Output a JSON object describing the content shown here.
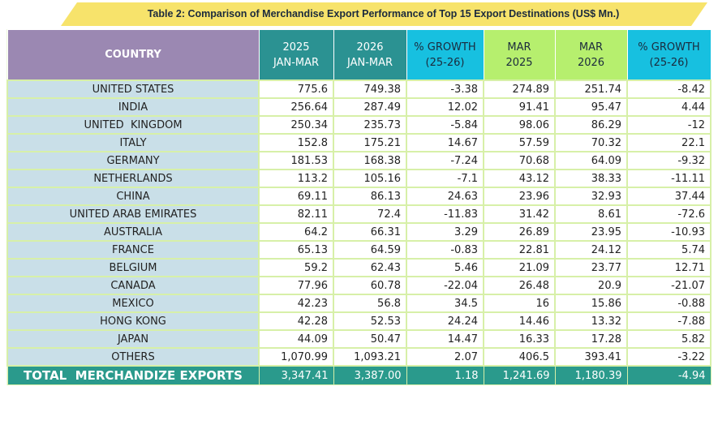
{
  "title": "Table 2: Comparison of Merchandise Export Performance of Top 15 Export Destinations (US$ Mn.)",
  "table": {
    "headers": [
      [
        "COUNTRY"
      ],
      [
        "2025",
        "JAN-MAR"
      ],
      [
        "2026",
        "JAN-MAR"
      ],
      [
        "% GROWTH",
        "(25-26)"
      ],
      [
        "MAR",
        "2025"
      ],
      [
        "MAR",
        "2026"
      ],
      [
        "% GROWTH",
        "(25-26)"
      ]
    ],
    "rows": [
      [
        "UNITED STATES",
        "775.6",
        "749.38",
        "-3.38",
        "274.89",
        "251.74",
        "-8.42"
      ],
      [
        "INDIA",
        "256.64",
        "287.49",
        "12.02",
        "91.41",
        "95.47",
        "4.44"
      ],
      [
        "UNITED  KINGDOM",
        "250.34",
        "235.73",
        "-5.84",
        "98.06",
        "86.29",
        "-12"
      ],
      [
        "ITALY",
        "152.8",
        "175.21",
        "14.67",
        "57.59",
        "70.32",
        "22.1"
      ],
      [
        "GERMANY",
        "181.53",
        "168.38",
        "-7.24",
        "70.68",
        "64.09",
        "-9.32"
      ],
      [
        "NETHERLANDS",
        "113.2",
        "105.16",
        "-7.1",
        "43.12",
        "38.33",
        "-11.11"
      ],
      [
        "CHINA",
        "69.11",
        "86.13",
        "24.63",
        "23.96",
        "32.93",
        "37.44"
      ],
      [
        "UNITED ARAB EMIRATES",
        "82.11",
        "72.4",
        "-11.83",
        "31.42",
        "8.61",
        "-72.6"
      ],
      [
        "AUSTRALIA",
        "64.2",
        "66.31",
        "3.29",
        "26.89",
        "23.95",
        "-10.93"
      ],
      [
        "FRANCE",
        "65.13",
        "64.59",
        "-0.83",
        "22.81",
        "24.12",
        "5.74"
      ],
      [
        "BELGIUM",
        "59.2",
        "62.43",
        "5.46",
        "21.09",
        "23.77",
        "12.71"
      ],
      [
        "CANADA",
        "77.96",
        "60.78",
        "-22.04",
        "26.48",
        "20.9",
        "-21.07"
      ],
      [
        "MEXICO",
        "42.23",
        "56.8",
        "34.5",
        "16",
        "15.86",
        "-0.88"
      ],
      [
        "HONG KONG",
        "42.28",
        "52.53",
        "24.24",
        "14.46",
        "13.32",
        "-7.88"
      ],
      [
        "JAPAN",
        "44.09",
        "50.47",
        "14.47",
        "16.33",
        "17.28",
        "5.82"
      ],
      [
        "OTHERS",
        "1,070.99",
        "1,093.21",
        "2.07",
        "406.5",
        "393.41",
        "-3.22"
      ]
    ],
    "total": [
      "TOTAL  MERCHANDIZE EXPORTS",
      "3,347.41",
      "3,387.00",
      "1.18",
      "1,241.69",
      "1,180.39",
      "-4.94"
    ]
  }
}
